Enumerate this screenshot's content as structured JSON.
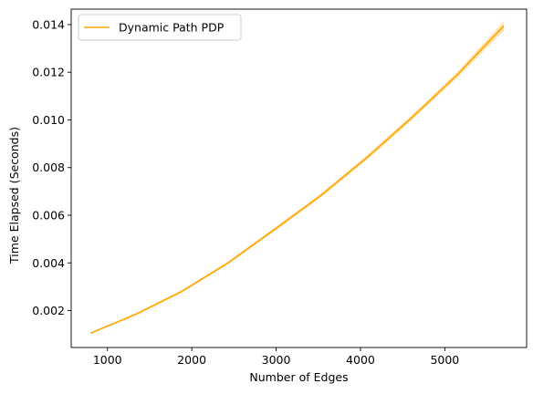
{
  "chart_data": {
    "type": "line",
    "title": "",
    "xlabel": "Number of Edges",
    "ylabel": "Time Elapsed (Seconds)",
    "xlim": [
      570,
      5970
    ],
    "ylim": [
      0.00045,
      0.01465
    ],
    "xticks": [
      1000,
      2000,
      3000,
      4000,
      5000
    ],
    "xtick_labels": [
      "1000",
      "2000",
      "3000",
      "4000",
      "5000"
    ],
    "yticks": [
      0.002,
      0.004,
      0.006,
      0.008,
      0.01,
      0.012,
      0.014
    ],
    "ytick_labels": [
      "0.002",
      "0.004",
      "0.006",
      "0.008",
      "0.010",
      "0.012",
      "0.014"
    ],
    "grid": false,
    "legend_position": "top-left",
    "series": [
      {
        "name": "Dynamic Path PDP",
        "color": "#ffa500",
        "x": [
          800,
          1340,
          1880,
          2430,
          2980,
          3520,
          4070,
          4610,
          5150,
          5700
        ],
        "y": [
          0.00105,
          0.00185,
          0.0028,
          0.004,
          0.0054,
          0.0068,
          0.0084,
          0.0101,
          0.0119,
          0.01395
        ],
        "band_lower": [
          0.00102,
          0.00181,
          0.00275,
          0.00394,
          0.00533,
          0.00672,
          0.0083,
          0.01,
          0.01178,
          0.01375
        ],
        "band_upper": [
          0.00108,
          0.00189,
          0.00285,
          0.00406,
          0.00547,
          0.00688,
          0.0085,
          0.0102,
          0.01202,
          0.01415
        ]
      }
    ]
  }
}
